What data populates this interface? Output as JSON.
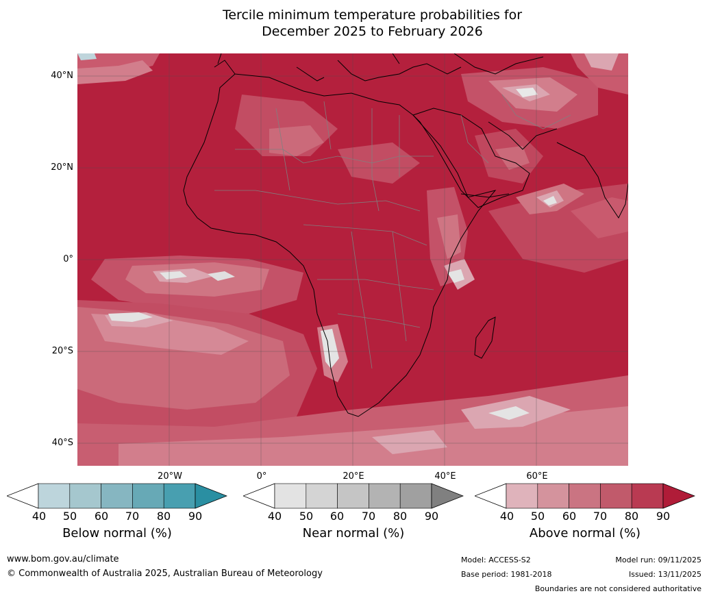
{
  "title": {
    "line1": "Tercile minimum temperature probabilities for",
    "line2": "December 2025 to February 2026"
  },
  "map": {
    "region": "Africa, Middle East and surrounding oceans",
    "lat_labels": [
      "40°N",
      "20°N",
      "0°",
      "20°S",
      "40°S"
    ],
    "lon_labels": [
      "20°W",
      "0°",
      "20°E",
      "40°E",
      "60°E"
    ],
    "dominant_category": "Above normal",
    "palette": {
      "ocean_base": "#b4203d",
      "land_base": "#b4203d",
      "above_50": "#dba6b1",
      "above_60": "#cf7583",
      "above_70": "#c45268",
      "above_80": "#b9354f",
      "near_normal": "#e4e4e4",
      "below_normal": "#bfd5dc",
      "coast": "#000000",
      "border": "#808080",
      "grid": "#505050"
    }
  },
  "colorbars": [
    {
      "name": "below",
      "title": "Below normal (%)",
      "ticks": [
        "40",
        "50",
        "60",
        "70",
        "80",
        "90"
      ],
      "colors": [
        "#ffffff",
        "#bdd5dc",
        "#a5c7ce",
        "#86b6c1",
        "#67a9b6",
        "#489fb0",
        "#2a8fa2"
      ]
    },
    {
      "name": "near",
      "title": "Near normal (%)",
      "ticks": [
        "40",
        "50",
        "60",
        "70",
        "80",
        "90"
      ],
      "colors": [
        "#ffffff",
        "#e3e3e3",
        "#d4d4d4",
        "#c5c5c5",
        "#b3b3b3",
        "#a0a0a0",
        "#808080"
      ]
    },
    {
      "name": "above",
      "title": "Above normal (%)",
      "ticks": [
        "40",
        "50",
        "60",
        "70",
        "80",
        "90"
      ],
      "colors": [
        "#ffffff",
        "#dfb3bb",
        "#d4939d",
        "#ca7482",
        "#c15a6b",
        "#b93a52",
        "#b01c38"
      ]
    }
  ],
  "footer": {
    "url": "www.bom.gov.au/climate",
    "copyright": "© Commonwealth of Australia 2025, Australian Bureau of Meteorology",
    "model": "Model: ACCESS-S2",
    "base_period": "Base period: 1981-2018",
    "model_run": "Model run: 09/11/2025",
    "issued": "Issued: 13/11/2025",
    "disclaimer": "Boundaries are not considered authoritative"
  }
}
